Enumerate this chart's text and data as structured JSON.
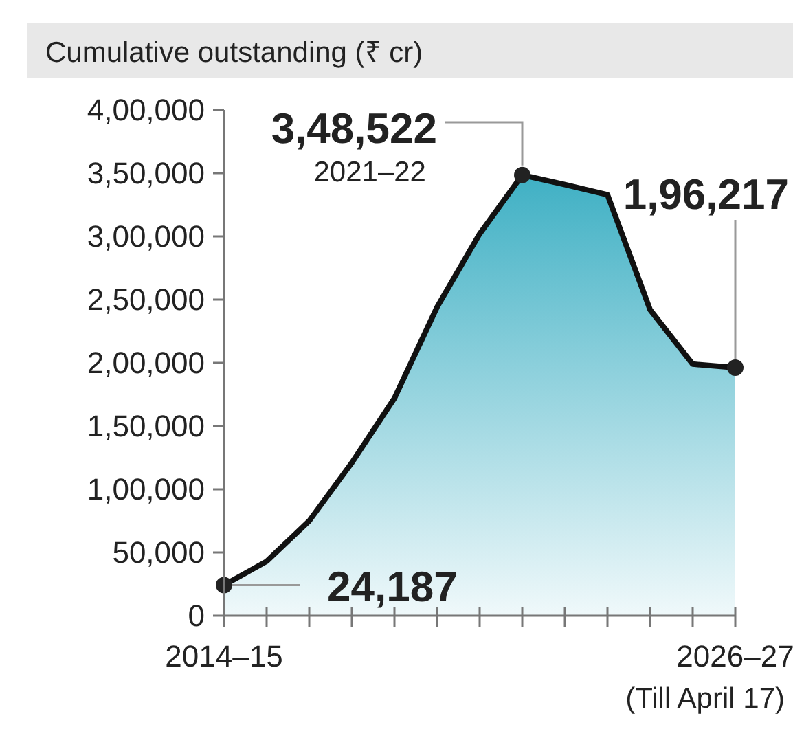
{
  "chart_data": {
    "type": "area",
    "title": "Cumulative outstanding (₹ cr)",
    "categories": [
      "2014–15",
      null,
      null,
      null,
      null,
      null,
      null,
      null,
      null,
      null,
      null,
      null,
      "2026–27"
    ],
    "series": [
      {
        "color": "#3fb0c4",
        "values": [
          24187,
          43000,
          75000,
          121000,
          172000,
          244000,
          302000,
          348522,
          341000,
          333000,
          242000,
          199000,
          196217
        ],
        "value_labels": [
          "24,187",
          null,
          null,
          null,
          null,
          null,
          null,
          "3,48,522",
          null,
          null,
          null,
          null,
          "1,96,217"
        ]
      }
    ],
    "ylim": [
      0,
      400000
    ],
    "yticks": [
      0,
      {
        "value": 50000,
        "label": "50,000"
      },
      {
        "value": 100000,
        "label": "1,00,000"
      },
      {
        "value": 150000,
        "label": "1,50,000"
      },
      {
        "value": 200000,
        "label": "2,00,000"
      },
      {
        "value": 250000,
        "label": "2,50,000"
      },
      {
        "value": 300000,
        "label": "3,00,000"
      },
      {
        "value": 350000,
        "label": "3,50,000"
      },
      {
        "value": 400000,
        "label": "4,00,000"
      }
    ],
    "annotations": [
      "2021–22",
      "(Till April 17)"
    ],
    "grid": false
  }
}
